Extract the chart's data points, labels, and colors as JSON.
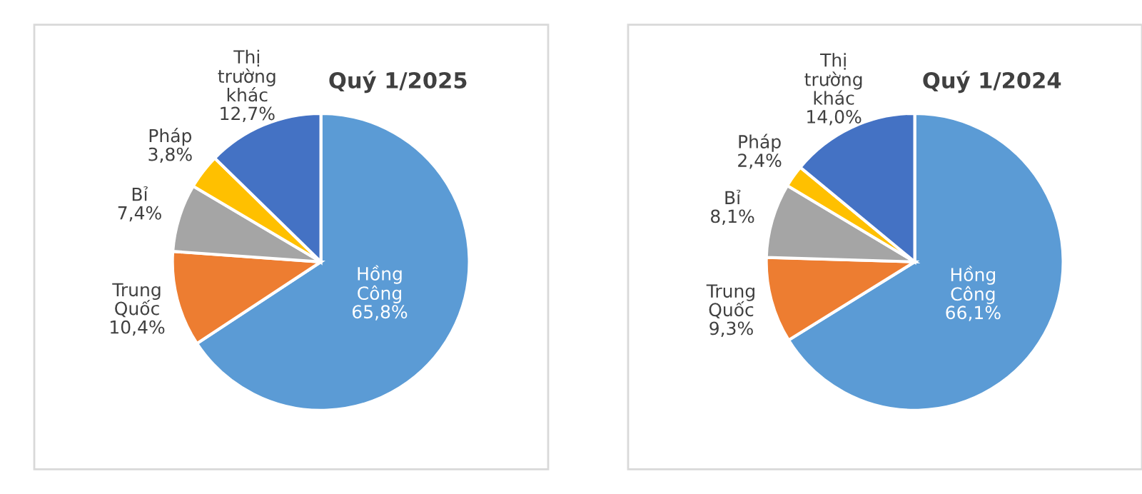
{
  "chart_data": [
    {
      "type": "pie",
      "title": "Quý 1/2025",
      "categories": [
        "Hồng\nCông",
        "Trung\nQuốc",
        "Bỉ",
        "Pháp",
        "Thị\ntrường\nkhác"
      ],
      "values": [
        65.8,
        10.4,
        7.4,
        3.8,
        12.7
      ],
      "colors": [
        "#5b9bd5",
        "#ed7d31",
        "#a5a5a5",
        "#ffc000",
        "#4472c4"
      ],
      "value_labels": [
        "65,8%",
        "10,4%",
        "7,4%",
        "3,8%",
        "12,7%"
      ]
    },
    {
      "type": "pie",
      "title": "Quý 1/2024",
      "categories": [
        "Hồng\nCông",
        "Trung\nQuốc",
        "Bỉ",
        "Pháp",
        "Thị\ntrường\nkhác"
      ],
      "values": [
        66.1,
        9.3,
        8.1,
        2.4,
        14.0
      ],
      "colors": [
        "#5b9bd5",
        "#ed7d31",
        "#a5a5a5",
        "#ffc000",
        "#4472c4"
      ],
      "value_labels": [
        "66,1%",
        "9,3%",
        "8,1%",
        "2,4%",
        "14,0%"
      ]
    }
  ]
}
